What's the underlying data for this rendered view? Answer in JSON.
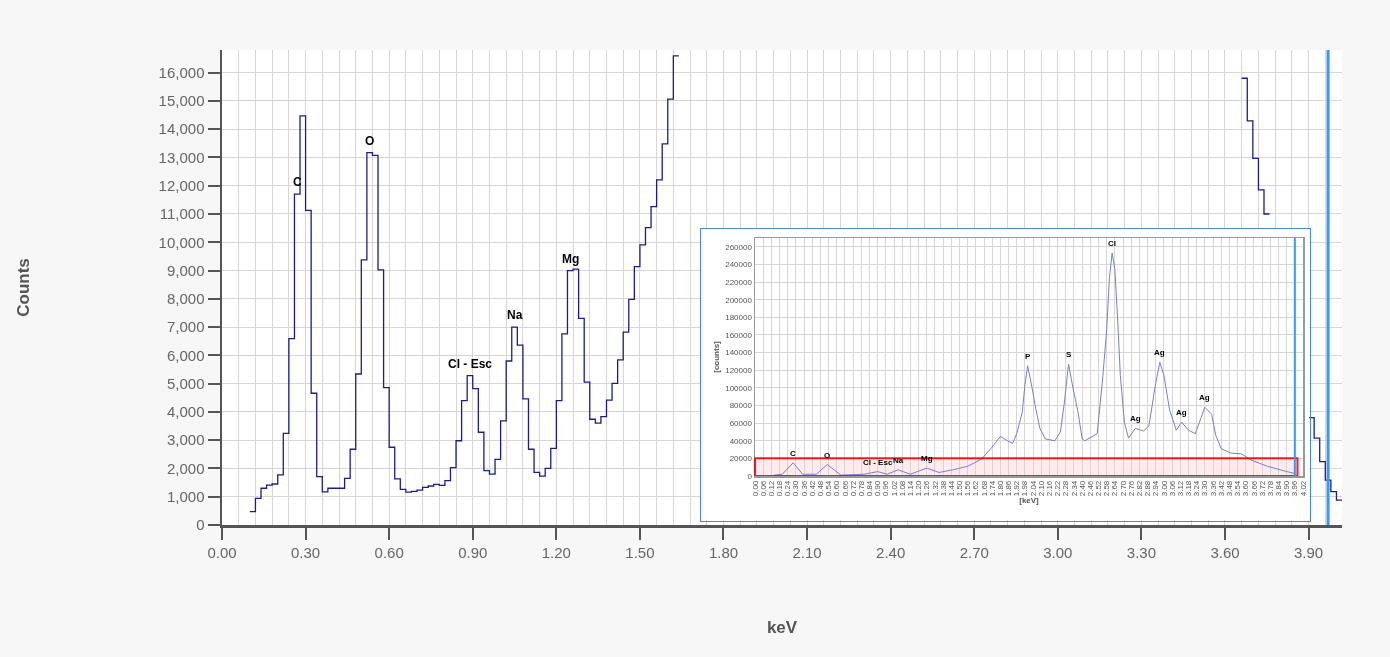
{
  "chart_data": [
    {
      "type": "step",
      "xlabel": "keV",
      "ylabel": "Counts",
      "grid": true,
      "series": [
        {
          "color": "#1c1c8f",
          "x": [
            0.1,
            0.12,
            0.14,
            0.16,
            0.18,
            0.2,
            0.22,
            0.24,
            0.26,
            0.28,
            0.3,
            0.32,
            0.34,
            0.36,
            0.38,
            0.4,
            0.42,
            0.44,
            0.46,
            0.48,
            0.5,
            0.52,
            0.54,
            0.56,
            0.58,
            0.6,
            0.62,
            0.64,
            0.66,
            0.68,
            0.7,
            0.72,
            0.74,
            0.76,
            0.78,
            0.8,
            0.82,
            0.84,
            0.86,
            0.88,
            0.9,
            0.92,
            0.94,
            0.96,
            0.98,
            1,
            1.02,
            1.04,
            1.06,
            1.08,
            1.1,
            1.12,
            1.14,
            1.16,
            1.18,
            1.2,
            1.22,
            1.24,
            1.26,
            1.28,
            1.3,
            1.32,
            1.34,
            1.36,
            1.38,
            1.4,
            1.42,
            1.44,
            1.46,
            1.48,
            1.5,
            1.52,
            1.54,
            1.56,
            1.58,
            1.6,
            1.62,
            1.64
          ],
          "values": [
            470,
            940,
            1300,
            1410,
            1450,
            1770,
            3240,
            6590,
            11700,
            14470,
            11130,
            4660,
            1710,
            1170,
            1300,
            1300,
            1300,
            1650,
            2680,
            5340,
            9380,
            13170,
            13070,
            9020,
            4860,
            2750,
            1630,
            1260,
            1160,
            1190,
            1230,
            1330,
            1380,
            1440,
            1400,
            1570,
            2030,
            2980,
            4400,
            5280,
            4820,
            3280,
            1920,
            1800,
            2320,
            3680,
            5800,
            7000,
            6360,
            4460,
            2680,
            1860,
            1730,
            2000,
            2710,
            4400,
            6760,
            9000,
            9050,
            7310,
            5050,
            3740,
            3600,
            3830,
            4420,
            5010,
            5840,
            6820,
            7980,
            9140,
            9910,
            10520,
            11260,
            12210,
            13480,
            15060,
            16590,
            16590
          ]
        },
        {
          "color": "#1c1c8f",
          "x": [
            3.66,
            3.68,
            3.7,
            3.72,
            3.74,
            3.76
          ],
          "values": [
            15800,
            14290,
            12970,
            11850,
            11000,
            11000
          ]
        },
        {
          "color": "#1c1c8f",
          "x": [
            3.9,
            3.92,
            3.94,
            3.96,
            3.98,
            4,
            4.02
          ],
          "values": [
            3800,
            3070,
            2240,
            1590,
            1180,
            880,
            880
          ]
        }
      ],
      "xlim": [
        0,
        4.02
      ],
      "ylim": [
        0,
        16800
      ],
      "xticks": [
        {
          "value": 0,
          "label": "0.00"
        },
        {
          "value": 0.3,
          "label": "0.30"
        },
        {
          "value": 0.6,
          "label": "0.60"
        },
        {
          "value": 0.9,
          "label": "0.90"
        },
        {
          "value": 1.2,
          "label": "1.20"
        },
        {
          "value": 1.5,
          "label": "1.50"
        },
        {
          "value": 1.8,
          "label": "1.80"
        },
        {
          "value": 2.1,
          "label": "2.10"
        },
        {
          "value": 2.4,
          "label": "2.40"
        },
        {
          "value": 2.7,
          "label": "2.70"
        },
        {
          "value": 3,
          "label": "3.00"
        },
        {
          "value": 3.3,
          "label": "3.30"
        },
        {
          "value": 3.6,
          "label": "3.60"
        },
        {
          "value": 3.9,
          "label": "3.90"
        }
      ],
      "yticks": [
        0,
        {
          "value": 1000,
          "label": "1,000"
        },
        {
          "value": 2000,
          "label": "2,000"
        },
        {
          "value": 3000,
          "label": "3,000"
        },
        {
          "value": 4000,
          "label": "4,000"
        },
        {
          "value": 5000,
          "label": "5,000"
        },
        {
          "value": 6000,
          "label": "6,000"
        },
        {
          "value": 7000,
          "label": "7,000"
        },
        {
          "value": 8000,
          "label": "8,000"
        },
        {
          "value": 9000,
          "label": "9,000"
        },
        {
          "value": 10000,
          "label": "10,000"
        },
        {
          "value": 11000,
          "label": "11,000"
        },
        {
          "value": 12000,
          "label": "12,000"
        },
        {
          "value": 13000,
          "label": "13,000"
        },
        {
          "value": 14000,
          "label": "14,000"
        },
        {
          "value": 15000,
          "label": "15,000"
        },
        {
          "value": 16000,
          "label": "16,000"
        }
      ],
      "ref_lines": [
        {
          "axis": "x",
          "value": 3.97,
          "color": "#3399ff"
        }
      ],
      "annotations": [
        {
          "text": "C",
          "x": 0.27,
          "y": 11700
        },
        {
          "text": "O",
          "x": 0.53,
          "y": 13170
        },
        {
          "text": "Cl - Esc",
          "x": 0.89,
          "y": 5280
        },
        {
          "text": "Na",
          "x": 1.05,
          "y": 7000
        },
        {
          "text": "Mg",
          "x": 1.25,
          "y": 9000
        }
      ]
    },
    {
      "type": "line",
      "xlabel": "[keV]",
      "ylabel": "[counts]",
      "color": "#7c7cd0",
      "grid": true,
      "x": [
        0.14,
        0.2,
        0.28,
        0.35,
        0.45,
        0.53,
        0.63,
        0.8,
        0.9,
        0.97,
        1.05,
        1.14,
        1.26,
        1.35,
        1.45,
        1.56,
        1.66,
        1.73,
        1.8,
        1.85,
        1.89,
        1.92,
        1.96,
        1.98,
        2,
        2.03,
        2.06,
        2.09,
        2.13,
        2.2,
        2.24,
        2.27,
        2.3,
        2.33,
        2.37,
        2.4,
        2.42,
        2.51,
        2.55,
        2.58,
        2.6,
        2.62,
        2.64,
        2.66,
        2.68,
        2.71,
        2.74,
        2.79,
        2.85,
        2.89,
        2.94,
        2.97,
        3,
        3.04,
        3.09,
        3.13,
        3.18,
        3.23,
        3.27,
        3.3,
        3.35,
        3.38,
        3.42,
        3.49,
        3.57,
        3.64,
        3.76,
        3.9,
        3.96
      ],
      "values": [
        1000,
        2000,
        15000,
        2000,
        2000,
        13000,
        1000,
        2000,
        5000,
        2000,
        7000,
        2000,
        9000,
        4000,
        7000,
        11000,
        19000,
        31000,
        45000,
        40000,
        37000,
        48000,
        72000,
        103000,
        125000,
        102000,
        76000,
        54000,
        42000,
        40000,
        50000,
        84000,
        127000,
        102000,
        72000,
        42000,
        40000,
        48000,
        110000,
        166000,
        225000,
        253000,
        234000,
        178000,
        114000,
        61000,
        43000,
        54000,
        51000,
        57000,
        106000,
        129000,
        114000,
        76000,
        52000,
        61000,
        52000,
        48000,
        65000,
        78000,
        70000,
        46000,
        31000,
        26000,
        25000,
        18000,
        11000,
        5000,
        3000
      ],
      "xlim": [
        0,
        4.02
      ],
      "ylim": [
        0,
        270000
      ],
      "xticks": [
        {
          "value": 0,
          "label": "0.00"
        },
        0.06,
        0.12,
        0.18,
        0.24,
        {
          "value": 0.3,
          "label": "0.30"
        },
        0.36,
        0.42,
        0.48,
        0.54,
        {
          "value": 0.6,
          "label": "0.60"
        },
        0.66,
        0.72,
        0.78,
        0.84,
        {
          "value": 0.9,
          "label": "0.90"
        },
        0.96,
        1.02,
        1.08,
        1.14,
        {
          "value": 1.2,
          "label": "1.20"
        },
        1.26,
        1.32,
        1.38,
        1.44,
        {
          "value": 1.5,
          "label": "1.50"
        },
        1.56,
        1.62,
        1.68,
        1.74,
        {
          "value": 1.8,
          "label": "1.80"
        },
        1.86,
        1.92,
        1.98,
        2.04,
        {
          "value": 2.1,
          "label": "2.10"
        },
        2.16,
        2.22,
        2.28,
        2.34,
        {
          "value": 2.4,
          "label": "2.40"
        },
        2.46,
        2.52,
        2.58,
        2.64,
        {
          "value": 2.7,
          "label": "2.70"
        },
        2.76,
        2.82,
        2.88,
        2.94,
        {
          "value": 3,
          "label": "3.00"
        },
        3.06,
        3.12,
        3.18,
        3.24,
        {
          "value": 3.3,
          "label": "3.30"
        },
        3.36,
        3.42,
        3.48,
        3.54,
        {
          "value": 3.6,
          "label": "3.60"
        },
        3.66,
        3.72,
        3.78,
        3.84,
        {
          "value": 3.9,
          "label": "3.90"
        },
        3.96,
        4.02
      ],
      "yticks": [
        0,
        20000,
        40000,
        60000,
        80000,
        100000,
        120000,
        140000,
        160000,
        180000,
        200000,
        220000,
        240000,
        260000
      ],
      "ref_lines": [
        {
          "axis": "x",
          "value": 3.96,
          "color": "#3399ff"
        }
      ],
      "bands": [
        {
          "axis": "y",
          "from": 0,
          "to": 20000,
          "color": "#ff0000"
        }
      ],
      "annotations": [
        {
          "text": "C",
          "x": 0.28,
          "y": 15000
        },
        {
          "text": "O",
          "x": 0.53,
          "y": 13000
        },
        {
          "text": "Cl - Esc",
          "x": 0.9,
          "y": 5000
        },
        {
          "text": "Na",
          "x": 1.05,
          "y": 7000
        },
        {
          "text": "Mg",
          "x": 1.26,
          "y": 9000
        },
        {
          "text": "P",
          "x": 2,
          "y": 125000
        },
        {
          "text": "S",
          "x": 2.3,
          "y": 127000
        },
        {
          "text": "Cl",
          "x": 2.62,
          "y": 253000
        },
        {
          "text": "Ag",
          "x": 2.79,
          "y": 54000
        },
        {
          "text": "Ag",
          "x": 2.97,
          "y": 129000
        },
        {
          "text": "Ag",
          "x": 3.13,
          "y": 61000
        },
        {
          "text": "Ag",
          "x": 3.3,
          "y": 78000
        }
      ]
    }
  ]
}
